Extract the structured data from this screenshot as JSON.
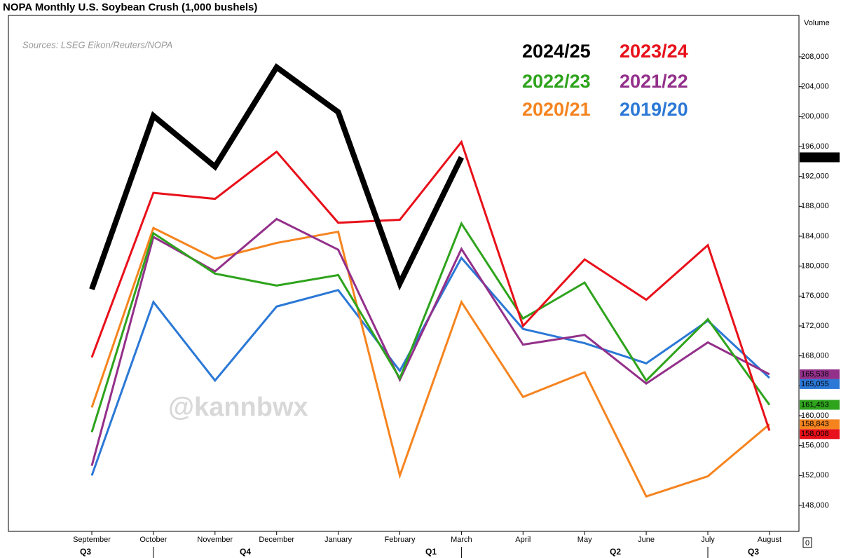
{
  "chart_data": {
    "type": "line",
    "title": "NOPA Monthly U.S. Soybean Crush (1,000 bushels)",
    "source": "Sources: LSEG Eikon/Reuters/NOPA",
    "watermark": "@kannbwx",
    "axis_label": "Volume",
    "bottom_label": "0",
    "categories": [
      "September",
      "October",
      "November",
      "December",
      "January",
      "February",
      "March",
      "April",
      "May",
      "June",
      "July",
      "August"
    ],
    "quarters": [
      "Q3",
      "Q4",
      "Q1",
      "Q2",
      "Q3"
    ],
    "ylim": [
      144530,
      213530
    ],
    "yticks": [
      {
        "value": 148000,
        "label": "148,000"
      },
      {
        "value": 152000,
        "label": "152,000"
      },
      {
        "value": 156000,
        "label": "156,000"
      },
      {
        "value": 160000,
        "label": "160,000"
      },
      {
        "value": 164000,
        "label": "164,000"
      },
      {
        "value": 168000,
        "label": "168,000"
      },
      {
        "value": 172000,
        "label": "172,000"
      },
      {
        "value": 176000,
        "label": "176,000"
      },
      {
        "value": 180000,
        "label": "180,000"
      },
      {
        "value": 184000,
        "label": "184,000"
      },
      {
        "value": 188000,
        "label": "188,000"
      },
      {
        "value": 192000,
        "label": "192,000"
      },
      {
        "value": 196000,
        "label": "196,000"
      },
      {
        "value": 200000,
        "label": "200,000"
      },
      {
        "value": 204000,
        "label": "204,000"
      },
      {
        "value": 208000,
        "label": "208,000"
      }
    ],
    "series": [
      {
        "name": "2024/25",
        "color": "#000000",
        "values": [
          176900,
          200100,
          193300,
          206600,
          200600,
          177700,
          194551,
          null,
          null,
          null,
          null,
          null
        ],
        "last_label": "194,551"
      },
      {
        "name": "2023/24",
        "color": "#e8101a",
        "values": [
          167800,
          189800,
          189000,
          195300,
          185800,
          186200,
          196600,
          172000,
          180900,
          175500,
          182800,
          158008
        ],
        "last_label": "158,008"
      },
      {
        "name": "2022/23",
        "color": "#2ea31c",
        "values": [
          157800,
          184400,
          179000,
          177400,
          178800,
          165000,
          185700,
          173000,
          177800,
          164700,
          172900,
          161453
        ],
        "last_label": "161,453"
      },
      {
        "name": "2021/22",
        "color": "#93308a",
        "values": [
          153300,
          183900,
          179300,
          186300,
          182200,
          164800,
          182300,
          169500,
          170800,
          164300,
          169800,
          165538
        ],
        "last_label": "165,538"
      },
      {
        "name": "2020/21",
        "color": "#f5841f",
        "values": [
          161100,
          185100,
          181000,
          183100,
          184600,
          152000,
          175200,
          162500,
          165800,
          149200,
          151900,
          158843
        ],
        "last_label": "158,843"
      },
      {
        "name": "2019/20",
        "color": "#2b78d6",
        "values": [
          152000,
          175200,
          164700,
          174600,
          176800,
          166000,
          181100,
          171600,
          169700,
          167000,
          172700,
          165055
        ],
        "last_label": "165,055"
      }
    ]
  }
}
